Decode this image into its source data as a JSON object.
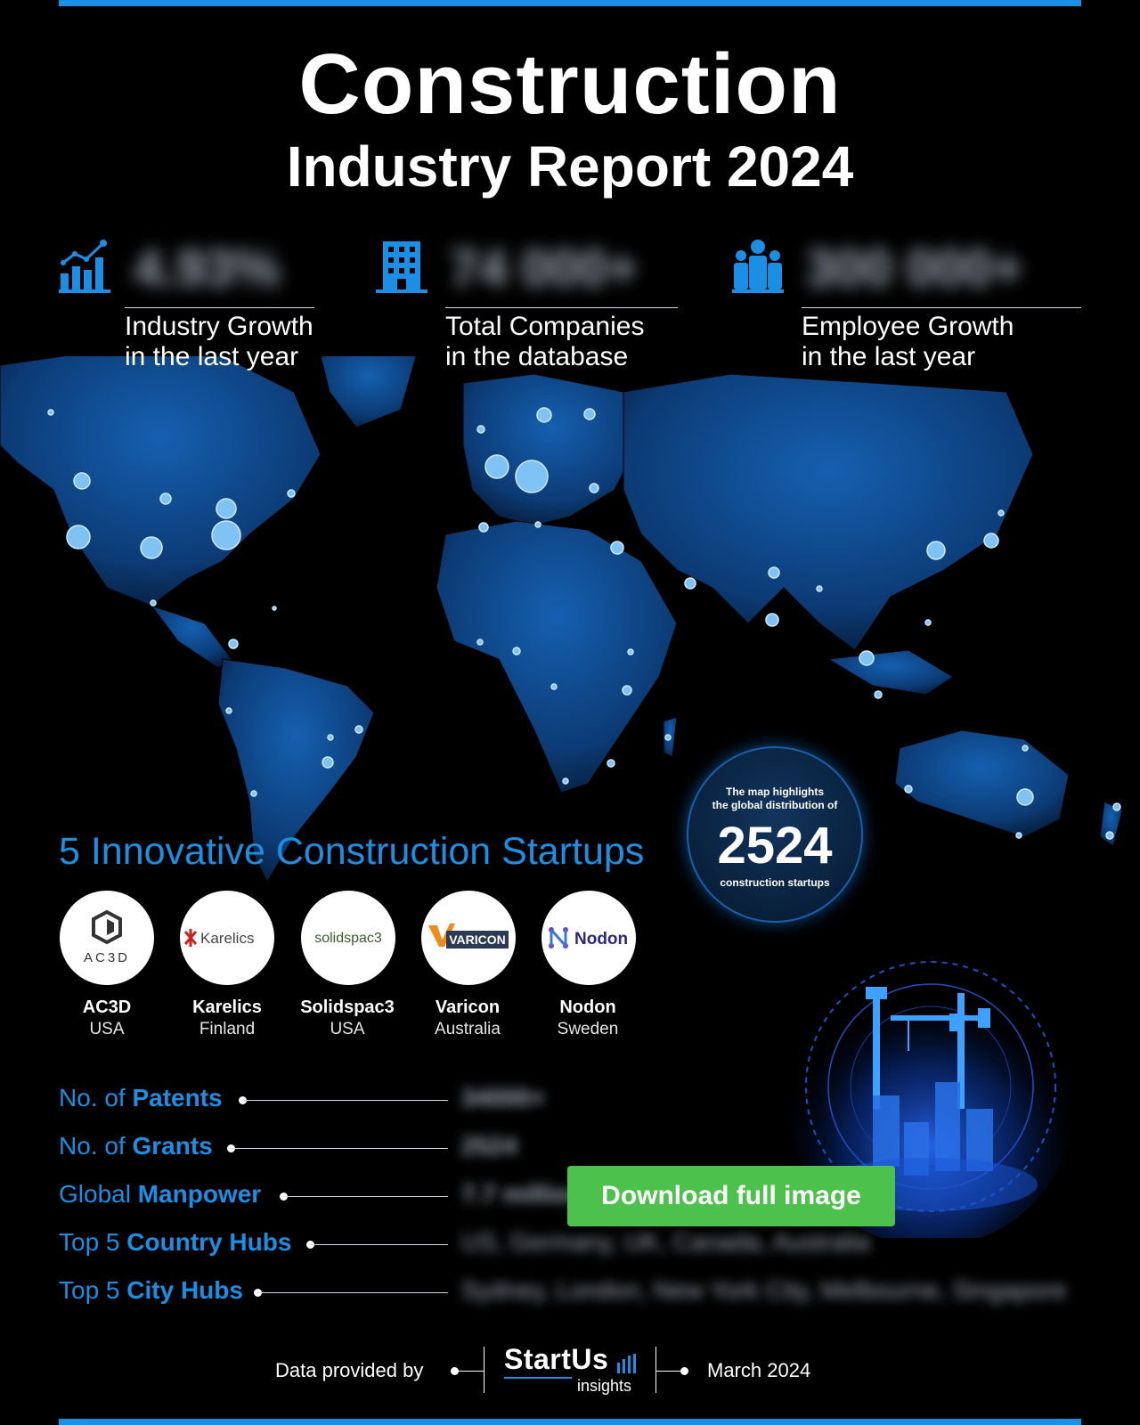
{
  "header": {
    "title_line1": "Construction",
    "title_line2": "Industry Report 2024"
  },
  "stats": [
    {
      "icon": "bar-chart-growth-icon",
      "value": "4.93%",
      "label_line1": "Industry Growth",
      "label_line2": "in the last year"
    },
    {
      "icon": "office-building-icon",
      "value": "74 000+",
      "label_line1": "Total Companies",
      "label_line2": "in the database"
    },
    {
      "icon": "people-group-icon",
      "value": "300 000+",
      "label_line1": "Employee Growth",
      "label_line2": "in the last year"
    }
  ],
  "map_badge": {
    "text_line1": "The map highlights",
    "text_line2": "the global distribution of",
    "number": "2524",
    "text_line3": "construction startups"
  },
  "startups": {
    "heading": "5 Innovative Construction Startups",
    "items": [
      {
        "logo_text": "AC3D",
        "name": "AC3D",
        "country": "USA"
      },
      {
        "logo_text": "Karelics",
        "name": "Karelics",
        "country": "Finland"
      },
      {
        "logo_text": "solidspac3",
        "name": "Solidspac3",
        "country": "USA"
      },
      {
        "logo_text": "VARICON",
        "name": "Varicon",
        "country": "Australia"
      },
      {
        "logo_text": "Nodon",
        "name": "Nodon",
        "country": "Sweden"
      }
    ]
  },
  "metrics": [
    {
      "prefix": "No. of ",
      "bold": "Patents",
      "value": "34000+"
    },
    {
      "prefix": "No. of ",
      "bold": "Grants",
      "value": "2524"
    },
    {
      "prefix": "Global ",
      "bold": "Manpower",
      "value": "7.7 million"
    },
    {
      "prefix": "Top 5 ",
      "bold": "Country Hubs",
      "value": "US, Germany, UK, Canada, Australia"
    },
    {
      "prefix": "Top 5 ",
      "bold": "City Hubs",
      "value": "Sydney, London, New York City, Melbourne, Singapore"
    }
  ],
  "download_button": "Download full image",
  "footer": {
    "provided_by": "Data provided by",
    "brand_name": "StartUs",
    "brand_sub": "insights",
    "date": "March 2024"
  },
  "colors": {
    "accent": "#1a8fe3",
    "map_fill": "#0d3f7a",
    "button": "#4cc24c",
    "background": "#000000"
  }
}
